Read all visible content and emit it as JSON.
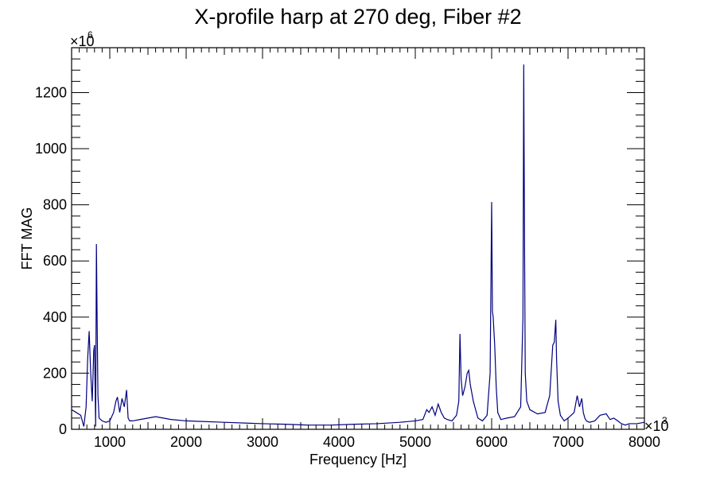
{
  "chart_data": {
    "type": "line",
    "title": "X-profile harp at 270 deg, Fiber #2",
    "xlabel": "Frequency [Hz]",
    "ylabel": "FFT MAG",
    "x_multiplier": "×10",
    "x_multiplier_exp": "3",
    "y_multiplier": "×10",
    "y_multiplier_exp": "6",
    "xlim": [
      500,
      8000
    ],
    "ylim": [
      0,
      1360
    ],
    "x_ticks": [
      1000,
      2000,
      3000,
      4000,
      5000,
      6000,
      7000,
      8000
    ],
    "x_tick_labels": [
      "1000",
      "2000",
      "3000",
      "4000",
      "5000",
      "6000",
      "7000",
      "8000"
    ],
    "y_ticks": [
      0,
      200,
      400,
      600,
      800,
      1000,
      1200
    ],
    "y_tick_labels": [
      "0",
      "200",
      "400",
      "600",
      "800",
      "1000",
      "1200"
    ],
    "line_color": "#000080",
    "grid": false,
    "series": [
      {
        "x": [
          500,
          560,
          620,
          660,
          690,
          710,
          730,
          750,
          770,
          790,
          800,
          815,
          825,
          835,
          845,
          860,
          900,
          950,
          1000,
          1050,
          1080,
          1100,
          1130,
          1160,
          1190,
          1220,
          1240,
          1260,
          1300,
          1400,
          1500,
          1600,
          1700,
          1800,
          2000,
          2200,
          2500,
          2800,
          3000,
          3300,
          3600,
          3900,
          4200,
          4500,
          4800,
          5000,
          5100,
          5150,
          5180,
          5220,
          5260,
          5300,
          5340,
          5380,
          5420,
          5480,
          5540,
          5570,
          5585,
          5600,
          5620,
          5650,
          5680,
          5700,
          5720,
          5760,
          5820,
          5880,
          5940,
          5980,
          6000,
          6010,
          6020,
          6040,
          6060,
          6080,
          6120,
          6200,
          6300,
          6380,
          6410,
          6420,
          6430,
          6440,
          6460,
          6500,
          6600,
          6700,
          6760,
          6800,
          6820,
          6840,
          6850,
          6870,
          6900,
          6950,
          7000,
          7080,
          7120,
          7150,
          7180,
          7200,
          7220,
          7240,
          7280,
          7350,
          7420,
          7500,
          7550,
          7600,
          7650,
          7700,
          7750,
          7800,
          7900,
          8000
        ],
        "y": [
          70,
          60,
          50,
          10,
          80,
          250,
          350,
          200,
          100,
          280,
          300,
          10,
          660,
          370,
          120,
          40,
          30,
          25,
          30,
          60,
          100,
          115,
          60,
          110,
          80,
          140,
          40,
          30,
          30,
          35,
          40,
          45,
          40,
          35,
          30,
          28,
          25,
          22,
          20,
          18,
          15,
          15,
          18,
          20,
          25,
          30,
          35,
          70,
          60,
          80,
          50,
          90,
          60,
          40,
          35,
          30,
          50,
          100,
          340,
          180,
          120,
          150,
          200,
          210,
          160,
          100,
          40,
          30,
          50,
          200,
          810,
          420,
          400,
          300,
          150,
          60,
          35,
          40,
          45,
          80,
          400,
          1300,
          700,
          200,
          100,
          70,
          55,
          60,
          120,
          300,
          310,
          390,
          250,
          100,
          50,
          30,
          40,
          60,
          120,
          80,
          110,
          60,
          40,
          30,
          25,
          30,
          50,
          55,
          35,
          40,
          30,
          20,
          15,
          20,
          20,
          25
        ]
      }
    ]
  }
}
